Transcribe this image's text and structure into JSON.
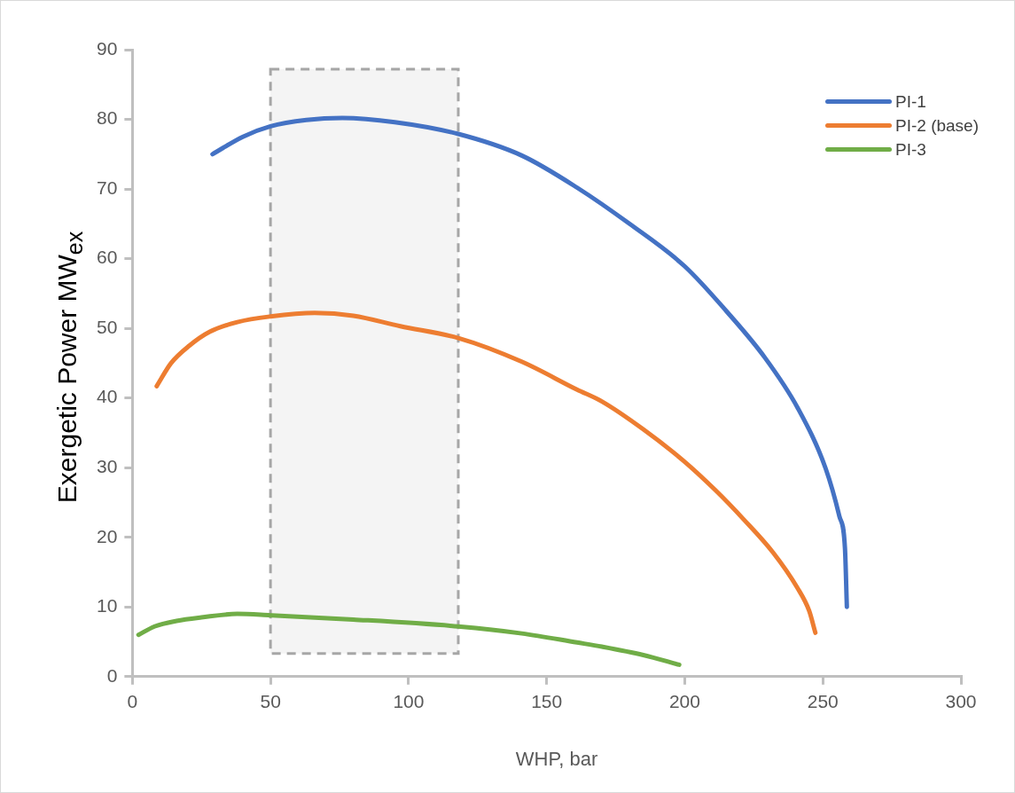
{
  "chart_data": {
    "type": "line",
    "xlabel": "WHP, bar",
    "ylabel": "Exergetic Power  MW$_{ex}$",
    "xlim": [
      0,
      300
    ],
    "xticks": [
      0,
      50,
      100,
      150,
      200,
      250,
      300
    ],
    "ylim": [
      0,
      90
    ],
    "yticks": [
      0,
      10,
      20,
      30,
      40,
      50,
      60,
      70,
      80,
      90
    ],
    "grid": false,
    "legend": "top right",
    "marker": "none",
    "line_style": "solid",
    "bands": [
      {
        "axis": "x",
        "from": 50,
        "to": 118,
        "color": "#a6a6a6"
      }
    ],
    "series": [
      {
        "name": "PI-1",
        "color": "#4472c4",
        "x": [
          29,
          40,
          50,
          63,
          76,
          95,
          118,
          141,
          161,
          180,
          200,
          215,
          229,
          241,
          251,
          256,
          258,
          258.7
        ],
        "values": [
          75,
          77.5,
          79,
          79.9,
          80.2,
          79.6,
          77.9,
          74.8,
          70.2,
          65,
          58.9,
          52.5,
          45.8,
          38.5,
          29.9,
          23,
          18.5,
          10
        ]
      },
      {
        "name": "PI-2 (base)",
        "color": "#ed7d31",
        "x": [
          8.8,
          14,
          20.6,
          28,
          38,
          50,
          66,
          80,
          97,
          118,
          141,
          161,
          170,
          185,
          199.5,
          211,
          221.5,
          232,
          240.7,
          245,
          247.3
        ],
        "values": [
          41.7,
          45,
          47.5,
          49.5,
          50.9,
          51.7,
          52.2,
          51.8,
          50.3,
          48.6,
          45.2,
          41.2,
          39.5,
          35.5,
          31,
          26.8,
          22.5,
          17.8,
          12.8,
          9.5,
          6.3
        ]
      },
      {
        "name": "PI-3",
        "color": "#70ad47",
        "x": [
          2.2,
          8,
          16,
          25,
          38,
          50,
          80,
          118,
          141,
          161,
          170,
          185,
          198
        ],
        "values": [
          6,
          7.2,
          8,
          8.5,
          9,
          8.8,
          8.2,
          7.2,
          6.2,
          4.9,
          4.3,
          3.1,
          1.7
        ]
      }
    ]
  }
}
